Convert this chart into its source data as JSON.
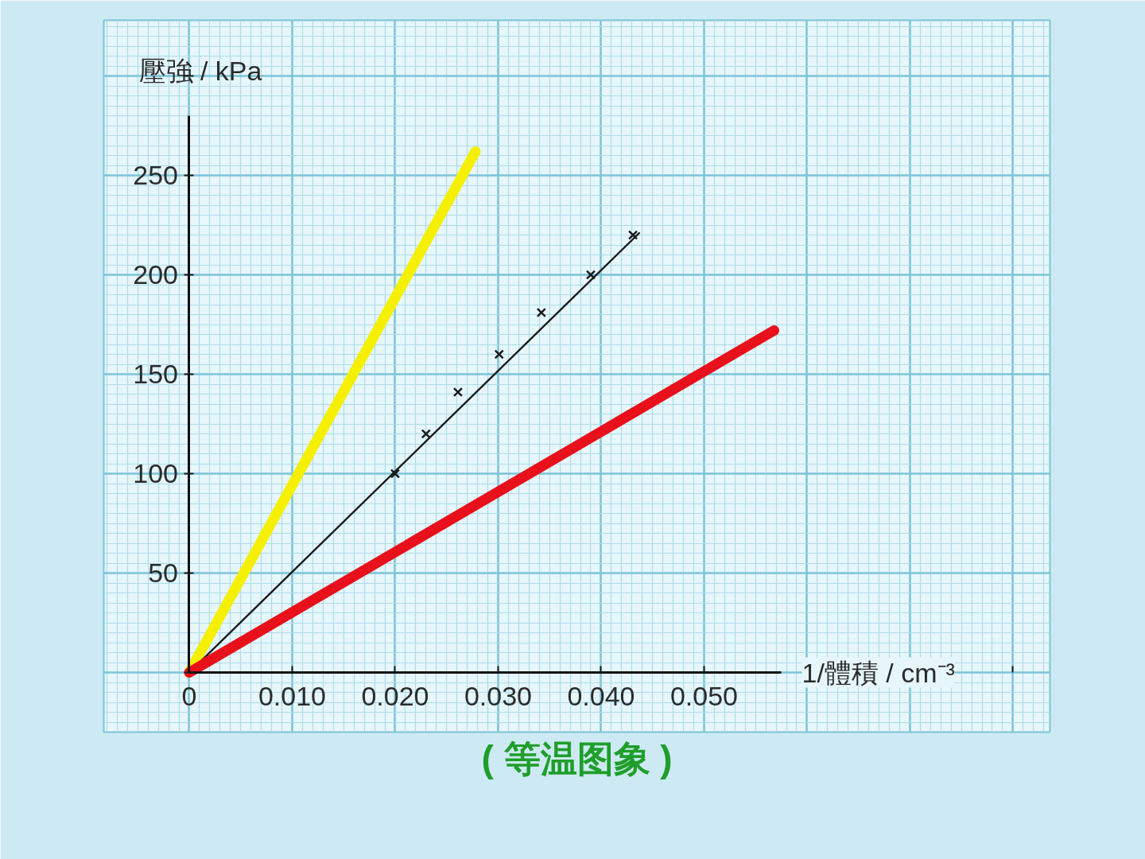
{
  "chart_data": {
    "type": "line",
    "title": "( 等温图象 )",
    "xlabel": "1/體積 / cm⁻³",
    "ylabel": "壓強 / kPa",
    "xlim": [
      -0.0083,
      0.0836
    ],
    "ylim": [
      -30,
      328
    ],
    "xticks": [
      0,
      {
        "value": 0.01,
        "label": "0.010"
      },
      {
        "value": 0.02,
        "label": "0.020"
      },
      {
        "value": 0.03,
        "label": "0.030"
      },
      {
        "value": 0.04,
        "label": "0.040"
      },
      {
        "value": 0.05,
        "label": "0.050"
      },
      {
        "value": 0.06,
        "label": null
      },
      {
        "value": 0.07,
        "label": null
      },
      {
        "value": 0.08,
        "label": null
      }
    ],
    "yticks": [
      {
        "value": 0,
        "label": null
      },
      50,
      100,
      150,
      200,
      250,
      {
        "value": 300,
        "label": null
      }
    ],
    "grid": true,
    "series": [
      {
        "color": "#f5f000",
        "x": [
          0,
          0.0278
        ],
        "values": [
          0,
          262
        ]
      },
      {
        "color": "#1a1a1a",
        "x": [
          0,
          0.0437
        ],
        "values": [
          0,
          221
        ]
      },
      {
        "type": "scatter",
        "marker": "cross",
        "color": "#1a1a1a",
        "x": [
          0.02,
          0.023,
          0.0261,
          0.0301,
          0.0342,
          0.039,
          0.0431
        ],
        "values": [
          100,
          120,
          141,
          160,
          181,
          200,
          220
        ]
      },
      {
        "color": "#e8101a",
        "x": [
          0,
          0.0568
        ],
        "values": [
          0,
          172
        ]
      }
    ]
  }
}
